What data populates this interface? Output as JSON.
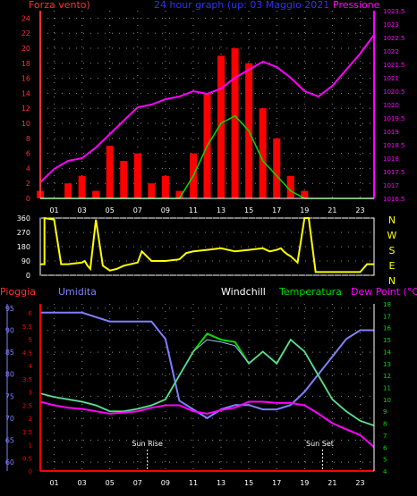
{
  "header": {
    "left_title": "Forza vento)",
    "center_title": "24 hour graph (up: 03 Maggio 2021",
    "right_title": "Pressione"
  },
  "hours": [
    "01",
    "03",
    "05",
    "07",
    "09",
    "11",
    "13",
    "15",
    "17",
    "19",
    "21",
    "23"
  ],
  "colors": {
    "wind": "#ff0000",
    "gust": "#00dd00",
    "pressure": "#ff00ff",
    "direction": "#ffff00",
    "rain": "#ff0000",
    "humidity": "#8080ff",
    "windchill": "#ffffff",
    "temperature": "#00dd00",
    "dewpoint": "#ff00ff",
    "axis": "#ffffff",
    "left_axis_top": "#ff3030",
    "left_axis_bottom": "#8080ff"
  },
  "chart_data": [
    {
      "type": "line",
      "name": "wind-and-pressure",
      "title": "24 hour graph (up: 03 Maggio 2021",
      "ylabel_left": "Forza vento)",
      "ylabel_right": "Pressione",
      "yticks_left": [
        "0",
        "2",
        "4",
        "6",
        "8",
        "10",
        "12",
        "14",
        "16",
        "18",
        "20",
        "22",
        "24"
      ],
      "yticks_right": [
        "1016.5",
        "1017",
        "1017.5",
        "1018",
        "1018.5",
        "1019",
        "1019.5",
        "1020",
        "1020.5",
        "1021",
        "1021.5",
        "1022",
        "1022.5",
        "1023",
        "1023.5"
      ],
      "ylim_left": [
        0,
        25
      ],
      "ylim_right": [
        1016.5,
        1023.5
      ],
      "x": [
        0,
        1,
        2,
        3,
        4,
        5,
        6,
        7,
        8,
        9,
        10,
        11,
        12,
        13,
        14,
        15,
        16,
        17,
        18,
        19,
        20,
        21,
        22,
        23,
        24
      ],
      "series": [
        {
          "name": "Forza vento",
          "values": [
            1,
            0,
            2,
            3,
            1,
            7,
            5,
            6,
            2,
            3,
            1,
            6,
            14,
            19,
            20,
            18,
            12,
            8,
            3,
            1,
            0,
            0,
            0,
            0,
            0
          ]
        },
        {
          "name": "gust",
          "values": [
            0,
            0,
            0,
            0,
            0,
            0,
            0,
            0,
            0,
            0,
            0,
            3,
            7,
            10,
            11,
            9,
            5,
            3,
            1,
            0,
            0,
            0,
            0,
            0,
            0
          ]
        },
        {
          "name": "Pressione",
          "values": [
            1017.1,
            1017.6,
            1017.9,
            1018.0,
            1018.4,
            1018.9,
            1019.4,
            1019.9,
            1020.0,
            1020.2,
            1020.3,
            1020.5,
            1020.4,
            1020.6,
            1021.0,
            1021.3,
            1021.6,
            1021.4,
            1021.0,
            1020.5,
            1020.3,
            1020.7,
            1021.3,
            1021.9,
            1022.6
          ]
        }
      ]
    },
    {
      "type": "line",
      "name": "wind-direction",
      "yticks": [
        "0",
        "90",
        "180",
        "270",
        "360"
      ],
      "ylim": [
        0,
        360
      ],
      "compass": [
        "N",
        "W",
        "S",
        "E",
        "N"
      ],
      "series": [
        {
          "name": "direction",
          "x": [
            0,
            0.3,
            0.3,
            1,
            1.5,
            2,
            3,
            3.2,
            3.4,
            3.6,
            4,
            4.5,
            5,
            5.5,
            6,
            7,
            7.3,
            8,
            9,
            10,
            10.5,
            11,
            12,
            13,
            14,
            15,
            16,
            16.5,
            17,
            17.3,
            17.5,
            17.8,
            18,
            18.5,
            19,
            19.3,
            19.8,
            20,
            21,
            22,
            23,
            23.5,
            24
          ],
          "values": [
            70,
            70,
            360,
            350,
            70,
            70,
            80,
            90,
            60,
            40,
            350,
            60,
            30,
            40,
            60,
            80,
            150,
            90,
            90,
            100,
            140,
            150,
            160,
            170,
            150,
            160,
            170,
            150,
            160,
            170,
            150,
            130,
            120,
            80,
            360,
            360,
            20,
            20,
            20,
            20,
            20,
            70,
            70
          ]
        }
      ]
    },
    {
      "type": "line",
      "name": "temperature-humidity",
      "labels": {
        "rain": "Pioggia",
        "humidity": "Umidita",
        "windchill": "Windchill",
        "temperature": "Temperatura",
        "dewpoint": "Dew Point (°C)"
      },
      "yticks_left": [
        "60",
        "65",
        "70",
        "75",
        "80",
        "85",
        "90",
        "95"
      ],
      "yticks_right": [
        "4",
        "5",
        "6",
        "7",
        "8",
        "9",
        "10",
        "11",
        "12",
        "13",
        "14",
        "15",
        "16",
        "17",
        "18"
      ],
      "rain_ticks": [
        "0",
        "0.5",
        "1",
        "1.5",
        "2",
        "2.5",
        "3",
        "3.5",
        "4",
        "4.5",
        "5",
        "5.5",
        "6"
      ],
      "ylim_left": [
        58,
        96
      ],
      "ylim_right": [
        4,
        18
      ],
      "annotations": {
        "sunrise": "Sun Rise",
        "sunset": "Sun Set"
      },
      "x": [
        0,
        1,
        2,
        3,
        4,
        5,
        6,
        7,
        8,
        9,
        10,
        11,
        12,
        13,
        14,
        15,
        16,
        17,
        18,
        19,
        20,
        21,
        22,
        23,
        24
      ],
      "series": [
        {
          "name": "Umidita",
          "values": [
            94,
            94,
            94,
            94,
            93,
            92,
            92,
            92,
            92,
            88,
            74,
            72,
            70,
            72,
            73,
            73,
            72,
            72,
            73,
            76,
            80,
            84,
            88,
            90,
            90
          ]
        },
        {
          "name": "Temperatura",
          "values": [
            10.5,
            10.2,
            10,
            9.8,
            9.5,
            9,
            9,
            9.2,
            9.5,
            10,
            12,
            14,
            15.5,
            15,
            14.8,
            13,
            14,
            13,
            15,
            14,
            12,
            10,
            9,
            8.2,
            7.8
          ]
        },
        {
          "name": "Windchill",
          "values": [
            10.5,
            10.2,
            10,
            9.8,
            9.5,
            9,
            9,
            9.2,
            9.5,
            10,
            12,
            14,
            15,
            14.8,
            14.5,
            13,
            14,
            13,
            15,
            14,
            12,
            10,
            9,
            8.2,
            7.8
          ]
        },
        {
          "name": "Dew Point",
          "values": [
            9.8,
            9.5,
            9.3,
            9.2,
            9,
            8.8,
            8.9,
            9,
            9.3,
            9.5,
            9.5,
            9,
            8.8,
            9.1,
            9.3,
            9.8,
            9.8,
            9.7,
            9.7,
            9.5,
            8.8,
            8,
            7.5,
            7,
            6
          ]
        }
      ]
    }
  ]
}
